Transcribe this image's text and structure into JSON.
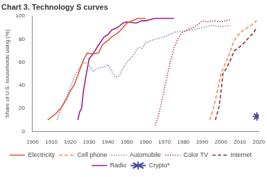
{
  "chart_data": {
    "type": "line",
    "title": "Chart 3. Technology S curves",
    "y_label": "Share of U.S. households using (%)",
    "xlim": [
      1900,
      2020
    ],
    "xticks": [
      1900,
      1910,
      1920,
      1930,
      1940,
      1950,
      1960,
      1970,
      1980,
      1990,
      2000,
      2010,
      2020
    ],
    "ylim": [
      0,
      100
    ],
    "yticks": [
      0,
      20,
      40,
      60,
      80,
      100
    ],
    "grid": false,
    "legend": "bottom",
    "series": [
      {
        "name": "Electricity",
        "color": "#e0553a",
        "line_style": "solid",
        "x": [
          1908,
          1912,
          1915,
          1918,
          1920,
          1922,
          1925,
          1927,
          1929,
          1932,
          1935,
          1937,
          1940,
          1942,
          1945,
          1948,
          1950,
          1953,
          1956,
          1960
        ],
        "values": [
          10,
          15,
          20,
          28,
          35,
          40,
          53,
          62,
          68,
          67,
          68,
          75,
          79,
          82,
          85,
          90,
          94,
          96,
          98,
          98
        ]
      },
      {
        "name": "Cell phone",
        "color": "#f08a4b",
        "line_style": "dashed",
        "x": [
          1994,
          1996,
          1998,
          2000,
          2002,
          2004,
          2006,
          2008,
          2010,
          2012,
          2014,
          2016,
          2018,
          2019
        ],
        "values": [
          10,
          20,
          35,
          50,
          58,
          65,
          75,
          82,
          85,
          88,
          90,
          92,
          95,
          96
        ]
      },
      {
        "name": "Automobile",
        "color": "#7a85b0",
        "line_style": "dotted",
        "x": [
          1913,
          1915,
          1918,
          1920,
          1923,
          1926,
          1928,
          1930,
          1932,
          1935,
          1938,
          1940,
          1942,
          1944,
          1946,
          1948,
          1950,
          1953,
          1956,
          1958,
          1960,
          1965,
          1970,
          1975,
          1980,
          1985,
          1990,
          1995,
          2000,
          2005
        ],
        "values": [
          10,
          20,
          30,
          38,
          50,
          58,
          60,
          57,
          52,
          55,
          56,
          58,
          52,
          47,
          48,
          55,
          60,
          65,
          73,
          72,
          77,
          80,
          82,
          86,
          87,
          88,
          90,
          92,
          91,
          92
        ]
      },
      {
        "name": "Color TV",
        "color": "#c0304a",
        "line_style": "dotted",
        "x": [
          1965,
          1967,
          1969,
          1971,
          1973,
          1975,
          1977,
          1979,
          1982,
          1985,
          1988,
          1990,
          1993,
          1996,
          2000,
          2005
        ],
        "values": [
          5,
          15,
          30,
          45,
          60,
          72,
          80,
          85,
          88,
          90,
          93,
          96,
          95,
          96,
          95,
          97
        ]
      },
      {
        "name": "Internet",
        "color": "#8b2e2e",
        "line_style": "dashed",
        "x": [
          1997,
          1999,
          2000,
          2001,
          2003,
          2005,
          2007,
          2009,
          2011,
          2013,
          2015,
          2017,
          2019
        ],
        "values": [
          10,
          22,
          35,
          50,
          55,
          62,
          70,
          72,
          75,
          78,
          82,
          85,
          90
        ]
      },
      {
        "name": "Radio",
        "color": "#9b1d8a",
        "line_style": "solid",
        "x": [
          1924,
          1925,
          1926,
          1927,
          1928,
          1930,
          1932,
          1935,
          1938,
          1940,
          1942,
          1945,
          1948,
          1950,
          1955,
          1958,
          1960,
          1965,
          1970,
          1975
        ],
        "values": [
          10,
          17,
          20,
          35,
          45,
          63,
          67,
          75,
          82,
          84,
          88,
          90,
          94,
          95,
          94,
          96,
          96,
          98,
          98,
          98
        ]
      },
      {
        "name": "Crypto*",
        "color": "#4a4a9a",
        "type": "scatter",
        "marker": "star",
        "x": [
          2019
        ],
        "values": [
          13
        ]
      }
    ]
  }
}
